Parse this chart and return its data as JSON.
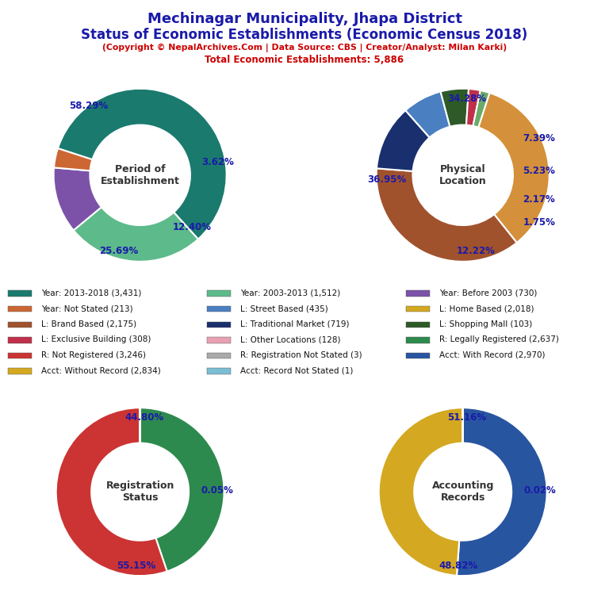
{
  "title1": "Mechinagar Municipality, Jhapa District",
  "title2": "Status of Economic Establishments (Economic Census 2018)",
  "subtitle": "(Copyright © NepalArchives.Com | Data Source: CBS | Creator/Analyst: Milan Karki)",
  "subtitle2": "Total Economic Establishments: 5,886",
  "pie1_label": "Period of\nEstablishment",
  "pie1_values": [
    58.29,
    25.69,
    12.4,
    3.62
  ],
  "pie1_colors": [
    "#1a7a6e",
    "#5dba8a",
    "#7b52a8",
    "#cc6633"
  ],
  "pie1_labels": [
    "58.29%",
    "25.69%",
    "12.40%",
    "3.62%"
  ],
  "pie1_startangle": 162,
  "pie2_label": "Physical\nLocation",
  "pie2_values": [
    34.28,
    36.95,
    12.22,
    7.39,
    5.23,
    2.17,
    1.75
  ],
  "pie2_colors": [
    "#d4903a",
    "#a0522d",
    "#1a2f6e",
    "#4a7fc1",
    "#2d5a27",
    "#c0304a",
    "#6aaa6a"
  ],
  "pie2_labels": [
    "34.28%",
    "36.95%",
    "12.22%",
    "7.39%",
    "5.23%",
    "2.17%",
    "1.75%"
  ],
  "pie2_startangle": 72,
  "pie3_label": "Registration\nStatus",
  "pie3_values": [
    44.8,
    55.15,
    0.05
  ],
  "pie3_colors": [
    "#2d8a4e",
    "#cc3333",
    "#aaaaaa"
  ],
  "pie3_labels": [
    "44.80%",
    "55.15%",
    "0.05%"
  ],
  "pie3_startangle": 90,
  "pie4_label": "Accounting\nRecords",
  "pie4_values": [
    51.16,
    48.82,
    0.02
  ],
  "pie4_colors": [
    "#2855a0",
    "#d4a820",
    "#7bbdd4"
  ],
  "pie4_labels": [
    "51.16%",
    "48.82%",
    "0.02%"
  ],
  "pie4_startangle": 90,
  "legend_items": [
    {
      "label": "Year: 2013-2018 (3,431)",
      "color": "#1a7a6e"
    },
    {
      "label": "Year: 2003-2013 (1,512)",
      "color": "#5dba8a"
    },
    {
      "label": "Year: Before 2003 (730)",
      "color": "#7b52a8"
    },
    {
      "label": "Year: Not Stated (213)",
      "color": "#cc6633"
    },
    {
      "label": "L: Street Based (435)",
      "color": "#4a7fc1"
    },
    {
      "label": "L: Home Based (2,018)",
      "color": "#d4a820"
    },
    {
      "label": "L: Brand Based (2,175)",
      "color": "#a0522d"
    },
    {
      "label": "L: Traditional Market (719)",
      "color": "#1a2f6e"
    },
    {
      "label": "L: Shopping Mall (103)",
      "color": "#2d5a27"
    },
    {
      "label": "L: Exclusive Building (308)",
      "color": "#c0304a"
    },
    {
      "label": "L: Other Locations (128)",
      "color": "#e8a0b0"
    },
    {
      "label": "R: Legally Registered (2,637)",
      "color": "#2d8a4e"
    },
    {
      "label": "R: Not Registered (3,246)",
      "color": "#cc3333"
    },
    {
      "label": "R: Registration Not Stated (3)",
      "color": "#aaaaaa"
    },
    {
      "label": "Acct: With Record (2,970)",
      "color": "#2855a0"
    },
    {
      "label": "Acct: Without Record (2,834)",
      "color": "#d4a820"
    },
    {
      "label": "Acct: Record Not Stated (1)",
      "color": "#7bbdd4"
    }
  ],
  "bg_color": "#ffffff",
  "title_color": "#1a1aaa",
  "subtitle_color": "#cc0000"
}
